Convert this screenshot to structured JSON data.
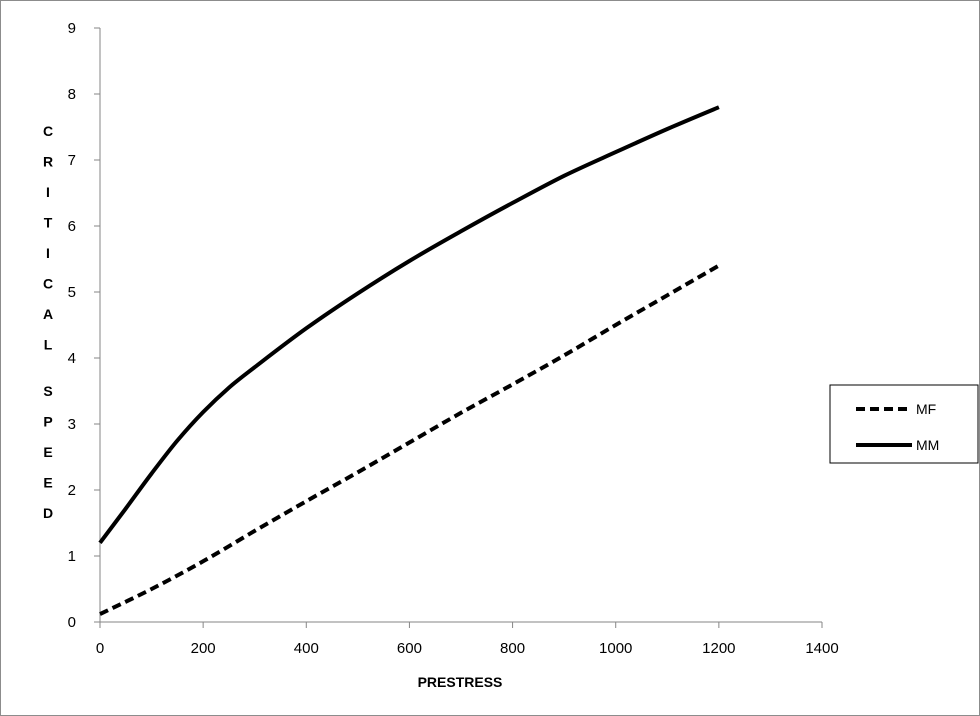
{
  "chart_data": {
    "type": "line",
    "title": "",
    "xlabel": "PRESTRESS",
    "ylabel": "CRITICAL SPEED",
    "xlim": [
      0,
      1400
    ],
    "ylim": [
      0,
      9
    ],
    "x_ticks": [
      "0",
      "200",
      "400",
      "600",
      "800",
      "1000",
      "1200",
      "1400"
    ],
    "y_ticks": [
      "0",
      "1",
      "2",
      "3",
      "4",
      "5",
      "6",
      "7",
      "8",
      "9"
    ],
    "grid": false,
    "legend_position": "right",
    "series": [
      {
        "name": "MF",
        "style": "dashed",
        "color": "#000000",
        "x": [
          0,
          100,
          200,
          300,
          400,
          500,
          600,
          700,
          800,
          900,
          1000,
          1100,
          1200
        ],
        "y": [
          0.12,
          0.5,
          0.92,
          1.38,
          1.83,
          2.27,
          2.72,
          3.17,
          3.6,
          4.04,
          4.5,
          4.95,
          5.4
        ]
      },
      {
        "name": "MM",
        "style": "solid",
        "color": "#000000",
        "x": [
          0,
          50,
          100,
          150,
          200,
          250,
          300,
          400,
          500,
          600,
          700,
          800,
          900,
          1000,
          1100,
          1200
        ],
        "y": [
          1.2,
          1.72,
          2.25,
          2.75,
          3.18,
          3.55,
          3.86,
          4.45,
          4.98,
          5.47,
          5.92,
          6.35,
          6.76,
          7.12,
          7.47,
          7.8
        ]
      }
    ]
  }
}
